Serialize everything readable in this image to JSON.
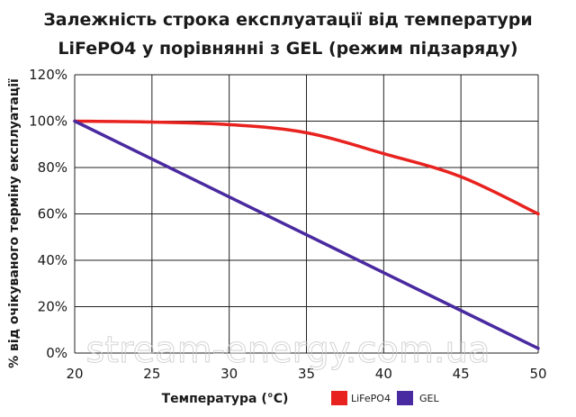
{
  "chart_data": {
    "type": "line",
    "title_line1": "Залежність строка експлуатації від температури",
    "title_line2": "LiFePO4 у порівнянні з GEL (режим підзаряду)",
    "xlabel": "Температура (°C)",
    "ylabel": "% від очікуваного терміну експлуатації",
    "xlim": [
      20,
      50
    ],
    "ylim": [
      0,
      120
    ],
    "x_ticks": [
      "20",
      "25",
      "30",
      "35",
      "40",
      "45",
      "50"
    ],
    "y_ticks": [
      "0%",
      "20%",
      "40%",
      "60%",
      "80%",
      "100%",
      "120%"
    ],
    "grid": true,
    "legend_position": "bottom",
    "series": [
      {
        "name": "LiFePO4",
        "color": "#e8221e",
        "x": [
          20,
          25,
          30,
          35,
          40,
          45,
          50
        ],
        "y": [
          100,
          99.6,
          98.5,
          95,
          86,
          76,
          60
        ]
      },
      {
        "name": "GEL",
        "color": "#4a2aa0",
        "x": [
          20,
          50
        ],
        "y": [
          100,
          2
        ]
      }
    ],
    "watermark": "stream-energy.com.ua"
  }
}
